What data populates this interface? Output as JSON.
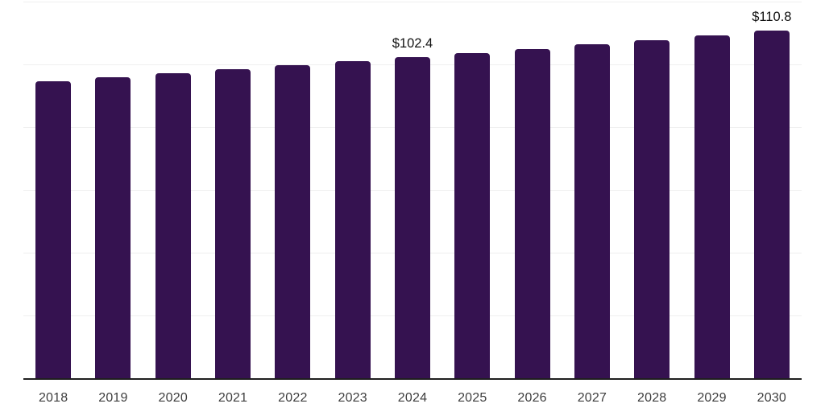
{
  "chart_data": {
    "type": "bar",
    "title": "",
    "xlabel": "",
    "ylabel": "",
    "categories": [
      "2018",
      "2019",
      "2020",
      "2021",
      "2022",
      "2023",
      "2024",
      "2025",
      "2026",
      "2027",
      "2028",
      "2029",
      "2030"
    ],
    "values": [
      94.7,
      96.0,
      97.2,
      98.5,
      99.8,
      101.1,
      102.4,
      103.8,
      105.1,
      106.5,
      107.9,
      109.3,
      110.8
    ],
    "data_labels": [
      {
        "category": "2024",
        "text": "$102.4"
      },
      {
        "category": "2030",
        "text": "$110.8"
      }
    ],
    "ylim": [
      0,
      120
    ],
    "grid_step": 20,
    "grid": true,
    "y_tick_labels_visible": false,
    "legend_position": "none",
    "colors": {
      "bar": "#351250",
      "gridline": "#efefef",
      "axis_line": "#1f1f1f",
      "data_label": "#121212",
      "tick_label": "#3d3d3d",
      "background": "#ffffff"
    }
  }
}
